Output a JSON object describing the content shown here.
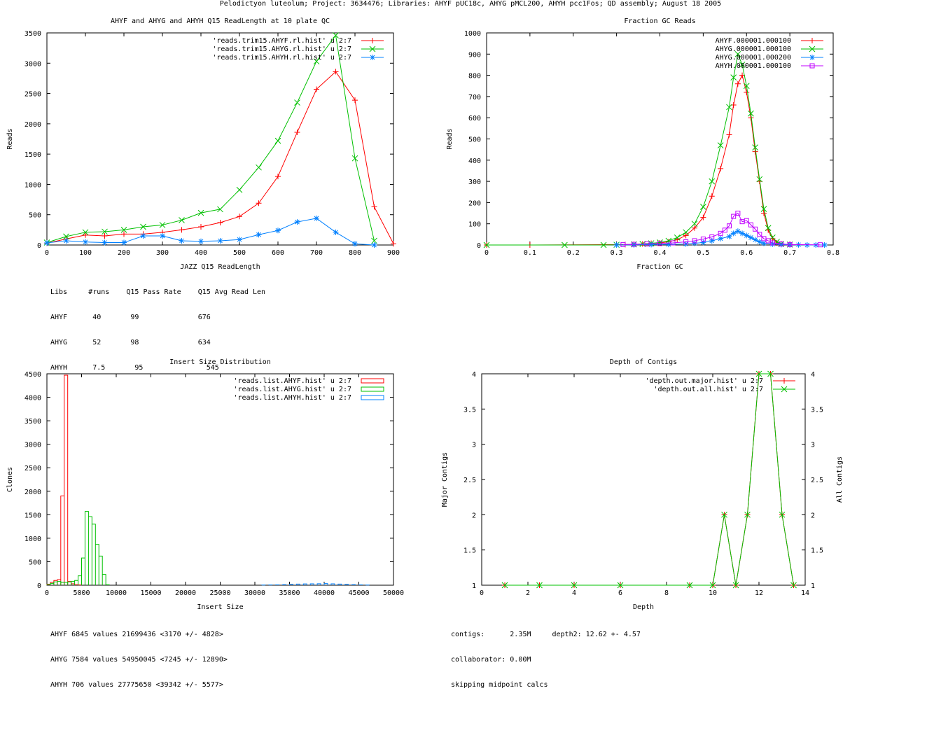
{
  "page": {
    "title": "Pelodictyon luteolum; Project: 3634476; Libraries: AHYF pUC18c, AHYG pMCL200, AHYH pcc1Fos; QD assembly; August 18 2005"
  },
  "stats": {
    "readlength_header": "Libs     #runs    Q15 Pass Rate    Q15 Avg Read Len",
    "readlength_rows": [
      "AHYF      40       99              676",
      "AHYG      52       98              634",
      "AHYH      7.5       95               545"
    ],
    "insert_rows": [
      "AHYF 6845 values 21699436 <3170 +/- 4828>",
      "AHYG 7584 values 54950045 <7245 +/- 12890>",
      "AHYH 706 values 27775650 <39342 +/- 5577>"
    ],
    "depth_rows": [
      "contigs:      2.35M     depth2: 12.62 +- 4.57",
      "collaborator: 0.00M",
      "skipping midpoint calcs"
    ]
  },
  "colors": {
    "red": "#ff0000",
    "green": "#00c000",
    "blue": "#0080ff",
    "purple": "#c000ff"
  },
  "chart_data": [
    {
      "type": "line",
      "title": "AHYF and AHYG and AHYH Q15 ReadLength at 10 plate QC",
      "xlabel": "JAZZ Q15 ReadLength",
      "ylabel": "Reads",
      "xlim": [
        0,
        900
      ],
      "ylim": [
        0,
        3500
      ],
      "xticks": [
        0,
        100,
        200,
        300,
        400,
        500,
        600,
        700,
        800,
        900
      ],
      "yticks": [
        0,
        500,
        1000,
        1500,
        2000,
        2500,
        3000,
        3500
      ],
      "legend_position": "top-right",
      "series": [
        {
          "name": "'reads.trim15.AHYF.rl.hist' u 2:7",
          "color": "#ff0000",
          "marker": "plus",
          "x": [
            0,
            50,
            100,
            150,
            200,
            250,
            300,
            350,
            400,
            450,
            500,
            550,
            600,
            650,
            700,
            750,
            800,
            850,
            900
          ],
          "y": [
            30,
            100,
            165,
            150,
            180,
            180,
            210,
            250,
            300,
            370,
            470,
            690,
            1130,
            1860,
            2570,
            2860,
            2390,
            630,
            20
          ]
        },
        {
          "name": "'reads.trim15.AHYG.rl.hist' u 2:7",
          "color": "#00c000",
          "marker": "x",
          "x": [
            0,
            50,
            100,
            150,
            200,
            250,
            300,
            350,
            400,
            450,
            500,
            550,
            600,
            650,
            700,
            750,
            800,
            850
          ],
          "y": [
            40,
            140,
            210,
            220,
            250,
            300,
            330,
            410,
            530,
            590,
            910,
            1280,
            1720,
            2350,
            3030,
            3460,
            1430,
            70
          ]
        },
        {
          "name": "'reads.trim15.AHYH.rl.hist' u 2:7",
          "color": "#0080ff",
          "marker": "star",
          "x": [
            0,
            50,
            100,
            150,
            200,
            250,
            300,
            350,
            400,
            450,
            500,
            550,
            600,
            650,
            700,
            750,
            800,
            850
          ],
          "y": [
            35,
            70,
            50,
            40,
            40,
            150,
            150,
            70,
            60,
            70,
            90,
            170,
            240,
            380,
            440,
            210,
            20,
            0
          ]
        }
      ]
    },
    {
      "type": "line",
      "title": "Fraction GC Reads",
      "xlabel": "Fraction GC",
      "ylabel": "Reads",
      "xlim": [
        0,
        0.8
      ],
      "ylim": [
        0,
        1000
      ],
      "xticks": [
        0,
        0.1,
        0.2,
        0.3,
        0.4,
        0.5,
        0.6,
        0.7,
        0.8
      ],
      "yticks": [
        0,
        100,
        200,
        300,
        400,
        500,
        600,
        700,
        800,
        900,
        1000
      ],
      "legend_position": "top-right",
      "series": [
        {
          "name": "AHYF.000001.000100",
          "color": "#ff0000",
          "marker": "plus",
          "x": [
            0,
            0.1,
            0.32,
            0.34,
            0.36,
            0.38,
            0.4,
            0.42,
            0.44,
            0.46,
            0.48,
            0.5,
            0.52,
            0.54,
            0.56,
            0.57,
            0.58,
            0.59,
            0.6,
            0.61,
            0.62,
            0.63,
            0.64,
            0.65,
            0.66,
            0.67,
            0.68,
            0.7
          ],
          "y": [
            0,
            0,
            2,
            3,
            5,
            8,
            10,
            15,
            25,
            45,
            80,
            130,
            230,
            360,
            520,
            660,
            760,
            800,
            720,
            600,
            440,
            300,
            150,
            70,
            30,
            10,
            5,
            2
          ]
        },
        {
          "name": "AHYG.000001.000100",
          "color": "#00c000",
          "marker": "x",
          "x": [
            0,
            0.18,
            0.27,
            0.3,
            0.34,
            0.36,
            0.38,
            0.4,
            0.42,
            0.44,
            0.46,
            0.48,
            0.5,
            0.52,
            0.54,
            0.56,
            0.57,
            0.58,
            0.59,
            0.6,
            0.61,
            0.62,
            0.63,
            0.64,
            0.65,
            0.66,
            0.67,
            0.68,
            0.7
          ],
          "y": [
            0,
            0,
            0,
            1,
            3,
            5,
            8,
            12,
            20,
            35,
            60,
            100,
            180,
            300,
            470,
            650,
            790,
            900,
            850,
            750,
            620,
            460,
            310,
            170,
            80,
            35,
            15,
            5,
            2
          ]
        },
        {
          "name": "AHYG.000001.000200",
          "color": "#0080ff",
          "marker": "star",
          "x": [
            0.3,
            0.34,
            0.38,
            0.42,
            0.46,
            0.48,
            0.5,
            0.52,
            0.54,
            0.56,
            0.57,
            0.58,
            0.59,
            0.6,
            0.61,
            0.62,
            0.63,
            0.64,
            0.66,
            0.68,
            0.7,
            0.72,
            0.74,
            0.76,
            0.78
          ],
          "y": [
            0,
            1,
            2,
            3,
            5,
            8,
            12,
            20,
            30,
            40,
            55,
            65,
            55,
            45,
            35,
            25,
            15,
            8,
            4,
            2,
            1,
            1,
            0,
            0,
            0
          ]
        },
        {
          "name": "AHYH.000001.000100",
          "color": "#c000ff",
          "marker": "box",
          "x": [
            0.315,
            0.34,
            0.37,
            0.4,
            0.43,
            0.46,
            0.48,
            0.5,
            0.52,
            0.54,
            0.55,
            0.56,
            0.57,
            0.58,
            0.59,
            0.6,
            0.61,
            0.62,
            0.63,
            0.64,
            0.65,
            0.66,
            0.68,
            0.7,
            0.77
          ],
          "y": [
            2,
            3,
            5,
            7,
            10,
            15,
            20,
            28,
            38,
            55,
            70,
            90,
            135,
            150,
            110,
            115,
            95,
            75,
            50,
            30,
            20,
            10,
            5,
            2,
            1
          ]
        }
      ]
    },
    {
      "type": "bar",
      "title": "Insert Size Distribution",
      "xlabel": "Insert Size",
      "ylabel": "Clones",
      "xlim": [
        0,
        50000
      ],
      "ylim": [
        0,
        4500
      ],
      "xticks": [
        0,
        5000,
        10000,
        15000,
        20000,
        25000,
        30000,
        35000,
        40000,
        45000,
        50000
      ],
      "yticks": [
        0,
        500,
        1000,
        1500,
        2000,
        2500,
        3000,
        3500,
        4000,
        4500
      ],
      "legend_position": "top-right",
      "bin_width": 500,
      "series": [
        {
          "name": "'reads.list.AHYF.hist' u 2:7",
          "color": "#ff0000",
          "x": [
            0,
            500,
            1000,
            1500,
            2000,
            2500,
            3000,
            3500,
            4000,
            4500
          ],
          "y": [
            20,
            60,
            100,
            120,
            1900,
            4470,
            80,
            30,
            10,
            5
          ]
        },
        {
          "name": "'reads.list.AHYG.hist' u 2:7",
          "color": "#00c000",
          "x": [
            0,
            500,
            1000,
            1500,
            2000,
            2500,
            3000,
            3500,
            4000,
            4500,
            5000,
            5500,
            6000,
            6500,
            7000,
            7500,
            8000,
            8500
          ],
          "y": [
            10,
            40,
            70,
            80,
            60,
            60,
            70,
            80,
            100,
            200,
            580,
            1570,
            1460,
            1300,
            870,
            620,
            230,
            10
          ]
        },
        {
          "name": "'reads.list.AHYH.hist' u 2:7",
          "color": "#0080ff",
          "x": [
            31000,
            32000,
            33000,
            34000,
            35000,
            36000,
            37000,
            38000,
            39000,
            40000,
            41000,
            42000,
            43000,
            44000,
            45000,
            46000
          ],
          "y": [
            3,
            5,
            8,
            12,
            20,
            25,
            28,
            30,
            32,
            35,
            30,
            25,
            18,
            12,
            8,
            3
          ]
        }
      ]
    },
    {
      "type": "line",
      "title": "Depth of Contigs",
      "xlabel": "Depth",
      "ylabel": "Major Contigs",
      "y2label": "All Contigs",
      "xlim": [
        0,
        14
      ],
      "ylim": [
        1,
        4
      ],
      "xticks": [
        0,
        2,
        4,
        6,
        8,
        10,
        12,
        14
      ],
      "yticks": [
        1,
        1.5,
        2,
        2.5,
        3,
        3.5,
        4
      ],
      "legend_position": "top-right",
      "series": [
        {
          "name": "'depth.out.major.hist' u 2:7",
          "color": "#ff0000",
          "marker": "plus",
          "x": [
            1,
            2.5,
            4,
            6,
            9,
            10,
            10.5,
            11,
            11.5,
            12,
            12.5,
            13,
            13.5
          ],
          "y": [
            1,
            1,
            1,
            1,
            1,
            1,
            2,
            1,
            2,
            4,
            4,
            2,
            1
          ]
        },
        {
          "name": "'depth.out.all.hist' u 2:7",
          "color": "#00c000",
          "marker": "x",
          "x": [
            1,
            2.5,
            4,
            6,
            9,
            10,
            10.5,
            11,
            11.5,
            12,
            12.5,
            13,
            13.5
          ],
          "y": [
            1,
            1,
            1,
            1,
            1,
            1,
            2,
            1,
            2,
            4,
            4,
            2,
            1
          ]
        }
      ]
    }
  ]
}
